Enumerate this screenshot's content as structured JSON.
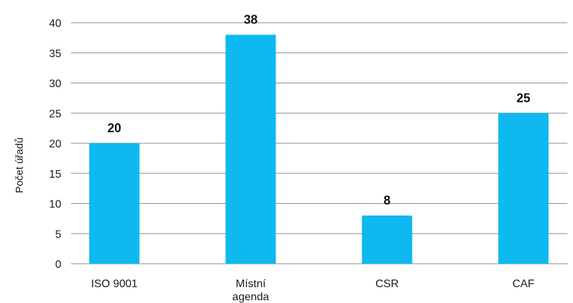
{
  "chart_data": {
    "type": "bar",
    "categories": [
      "ISO 9001",
      "Místní agenda",
      "CSR",
      "CAF"
    ],
    "category_lines": [
      [
        "ISO 9001"
      ],
      [
        "Místní",
        "agenda"
      ],
      [
        "CSR"
      ],
      [
        "CAF"
      ]
    ],
    "values": [
      20,
      38,
      8,
      25
    ],
    "value_labels": [
      "20",
      "38",
      "8",
      "25"
    ],
    "title": "",
    "xlabel": "",
    "ylabel": "Počet úřadů",
    "ylim": [
      0,
      40
    ],
    "yticks": [
      0,
      5,
      10,
      15,
      20,
      25,
      30,
      35,
      40
    ],
    "grid": true,
    "legend": "none",
    "colors": {
      "bar": "#0DB9EE",
      "grid": "#8a8a8a",
      "text": "#1a1a1a"
    }
  }
}
